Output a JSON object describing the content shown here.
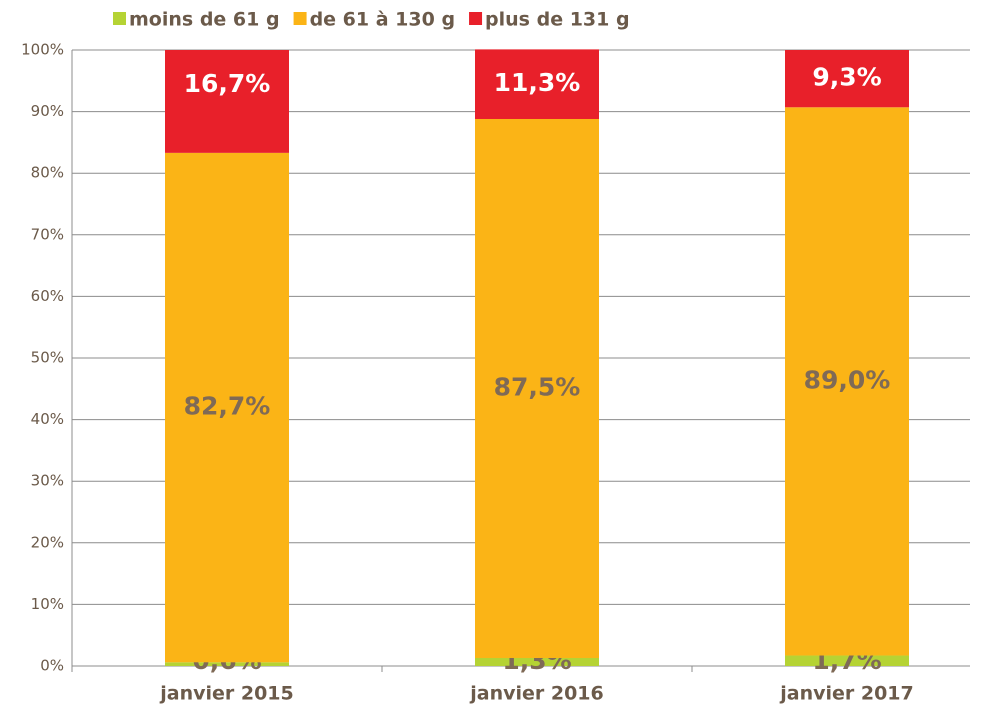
{
  "chart_data": {
    "type": "stacked_bar",
    "categories": [
      "janvier 2015",
      "janvier 2016",
      "janvier 2017"
    ],
    "series": [
      {
        "name": "moins de 61 g",
        "color": "#b5d334",
        "values": [
          0.6,
          1.3,
          1.7
        ],
        "value_labels": [
          "0,6%",
          "1,3%",
          "1,7%"
        ]
      },
      {
        "name": "de 61 à 130 g",
        "color": "#fbb416",
        "values": [
          82.7,
          87.5,
          89.0
        ],
        "value_labels": [
          "82,7%",
          "87,5%",
          "89,0%"
        ]
      },
      {
        "name": "plus de 131 g",
        "color": "#e8202a",
        "values": [
          16.7,
          11.3,
          9.3
        ],
        "value_labels": [
          "16,7%",
          "11,3%",
          "9,3%"
        ]
      }
    ],
    "ylim": [
      0,
      100
    ],
    "yticks": [
      {
        "value": 0,
        "label": "0%"
      },
      {
        "value": 10,
        "label": "10%"
      },
      {
        "value": 20,
        "label": "20%"
      },
      {
        "value": 30,
        "label": "30%"
      },
      {
        "value": 40,
        "label": "40%"
      },
      {
        "value": 50,
        "label": "50%"
      },
      {
        "value": 60,
        "label": "60%"
      },
      {
        "value": 70,
        "label": "70%"
      },
      {
        "value": 80,
        "label": "80%"
      },
      {
        "value": 90,
        "label": "90%"
      },
      {
        "value": 100,
        "label": "100%"
      }
    ],
    "grid": true,
    "legend": "top"
  }
}
